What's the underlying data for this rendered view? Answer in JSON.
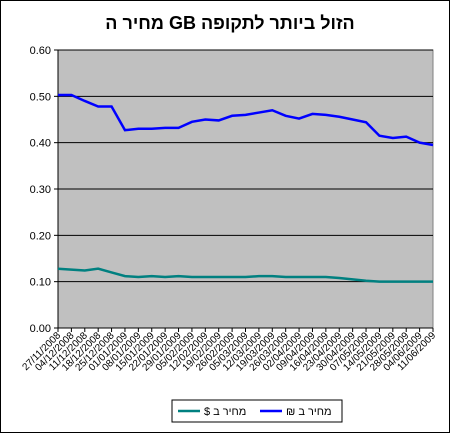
{
  "chart_data": {
    "type": "line",
    "title": "מחיר ה GB הזול ביותר לתקופה",
    "categories": [
      "27/11/2008",
      "04/12/2008",
      "11/12/2008",
      "18/12/2008",
      "25/12/2008",
      "01/01/2009",
      "08/01/2009",
      "15/01/2009",
      "22/01/2009",
      "29/01/2009",
      "05/02/2009",
      "12/02/2009",
      "19/02/2009",
      "26/02/2009",
      "05/03/2009",
      "12/03/2009",
      "19/03/2009",
      "26/03/2009",
      "02/04/2009",
      "09/04/2009",
      "16/04/2009",
      "23/04/2009",
      "30/04/2009",
      "07/05/2009",
      "14/05/2009",
      "21/05/2009",
      "28/05/2009",
      "04/06/2009",
      "11/06/2009"
    ],
    "series": [
      {
        "name": "מחיר ב $",
        "color": "#008080",
        "values": [
          0.128,
          0.126,
          0.124,
          0.128,
          0.12,
          0.112,
          0.11,
          0.112,
          0.11,
          0.112,
          0.11,
          0.11,
          0.11,
          0.11,
          0.11,
          0.112,
          0.112,
          0.11,
          0.11,
          0.11,
          0.11,
          0.108,
          0.105,
          0.102,
          0.1,
          0.1,
          0.1,
          0.1,
          0.1
        ]
      },
      {
        "name": "מחיר ב ₪",
        "color": "#0000ff",
        "values": [
          0.503,
          0.503,
          0.49,
          0.478,
          0.478,
          0.427,
          0.43,
          0.43,
          0.432,
          0.432,
          0.445,
          0.45,
          0.448,
          0.458,
          0.46,
          0.465,
          0.47,
          0.458,
          0.452,
          0.462,
          0.46,
          0.456,
          0.45,
          0.444,
          0.415,
          0.41,
          0.413,
          0.4,
          0.395
        ]
      }
    ],
    "ylim": [
      0,
      0.6
    ],
    "yticks": [
      {
        "value": 0,
        "label": "0.00"
      },
      {
        "value": 0.1,
        "label": "0.10"
      },
      {
        "value": 0.2,
        "label": "0.20"
      },
      {
        "value": 0.3,
        "label": "0.30"
      },
      {
        "value": 0.4,
        "label": "0.40"
      },
      {
        "value": 0.5,
        "label": "0.50"
      },
      {
        "value": 0.6,
        "label": "0.60"
      }
    ],
    "grid": true,
    "legend": "bottom"
  }
}
